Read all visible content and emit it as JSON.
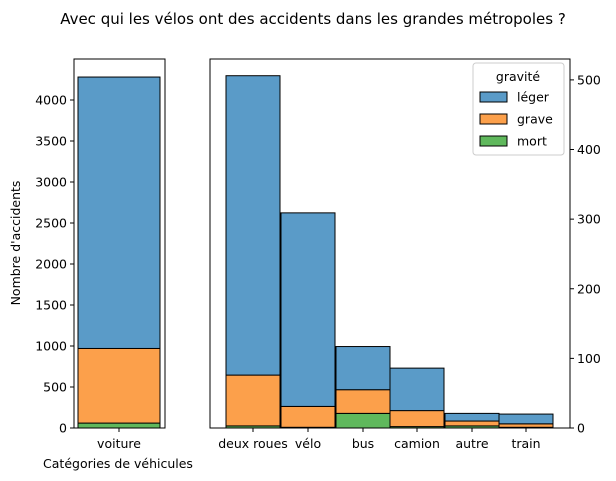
{
  "chart_data": {
    "type": "bar",
    "title": "Avec qui les vélos ont des accidents dans les grandes métropoles ?",
    "xlabel": "Catégories de véhicules",
    "ylabel": "Nombre d'accidents",
    "stacked": true,
    "legend": {
      "title": "gravité",
      "placement": "top-right",
      "entries": [
        "léger",
        "grave",
        "mort"
      ]
    },
    "colors": {
      "léger": "#5a9bc8",
      "grave": "#fca04b",
      "mort": "#5fb85c"
    },
    "panels": [
      {
        "name": "left",
        "y_axis_side": "left",
        "ylim": [
          0,
          4500
        ],
        "yticks": [
          0,
          500,
          1000,
          1500,
          2000,
          2500,
          3000,
          3500,
          4000
        ],
        "categories": [
          "voiture"
        ],
        "series": [
          {
            "name": "léger",
            "values": [
              3310
            ]
          },
          {
            "name": "grave",
            "values": [
              910
            ]
          },
          {
            "name": "mort",
            "values": [
              60
            ]
          }
        ]
      },
      {
        "name": "right",
        "y_axis_side": "right",
        "ylim": [
          0,
          530
        ],
        "yticks": [
          0,
          100,
          200,
          300,
          400,
          500
        ],
        "categories": [
          "deux roues",
          "vélo",
          "bus",
          "camion",
          "autre",
          "train"
        ],
        "series": [
          {
            "name": "léger",
            "values": [
              430,
              278,
              62,
              61,
              11,
              14
            ]
          },
          {
            "name": "grave",
            "values": [
              73,
              30,
              34,
              23,
              7,
              5
            ]
          },
          {
            "name": "mort",
            "values": [
              3,
              1,
              21,
              2,
              3,
              1
            ]
          }
        ]
      }
    ]
  }
}
